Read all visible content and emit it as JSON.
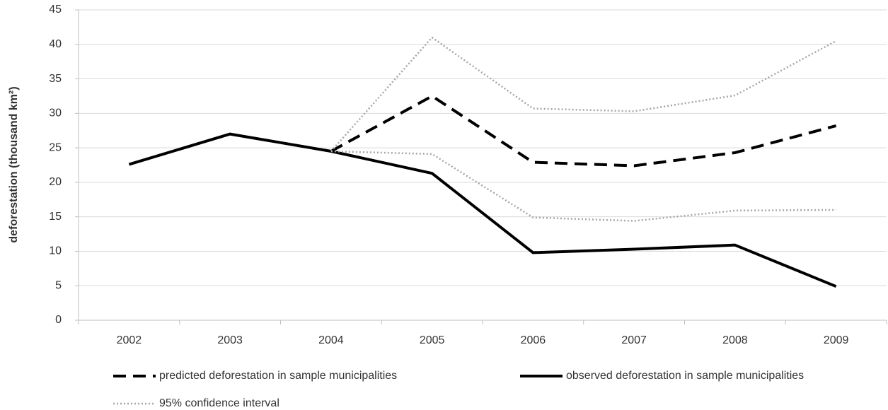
{
  "chart_data": {
    "type": "line",
    "y_label": "deforestation (thousand km²)",
    "categories": [
      "2002",
      "2003",
      "2004",
      "2005",
      "2006",
      "2007",
      "2008",
      "2009"
    ],
    "series": [
      {
        "name": "predicted deforestation in sample municipalities",
        "color": "#000000",
        "style": "dashed",
        "values": [
          null,
          null,
          24.5,
          32.5,
          22.9,
          22.4,
          24.3,
          28.2
        ]
      },
      {
        "name": "observed deforestation in sample municipalities",
        "color": "#000000",
        "style": "solid",
        "values": [
          22.6,
          27.0,
          24.5,
          21.3,
          9.8,
          10.3,
          10.9,
          4.9
        ]
      },
      {
        "name": "95% confidence interval",
        "color": "#a6a6a6",
        "style": "dotted",
        "values": [
          null,
          null,
          24.5,
          41.0,
          30.7,
          30.3,
          32.6,
          40.5
        ],
        "lower": [
          null,
          null,
          24.5,
          24.1,
          14.9,
          14.4,
          15.9,
          16.0
        ]
      }
    ],
    "ylim": [
      0,
      45
    ],
    "yticks": [
      0,
      5,
      10,
      15,
      20,
      25,
      30,
      35,
      40,
      45
    ],
    "grid": true
  }
}
